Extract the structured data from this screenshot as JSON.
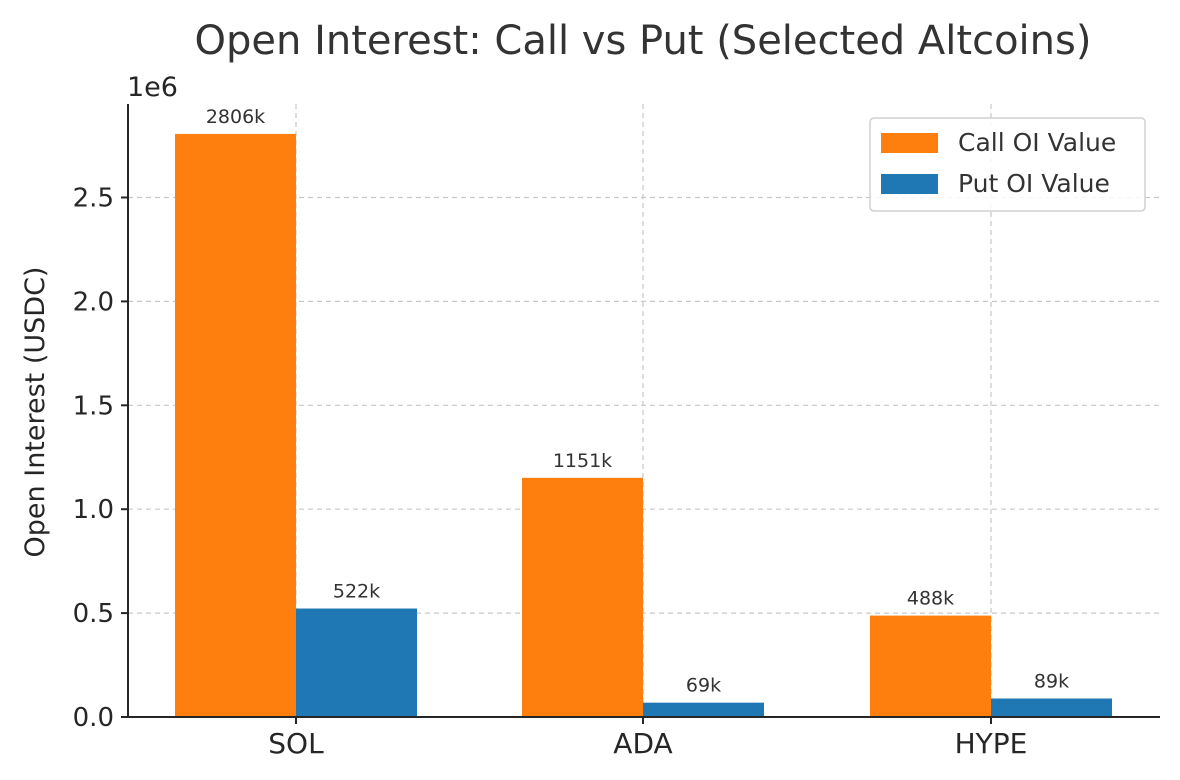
{
  "chart_data": {
    "type": "bar",
    "title": "Open Interest: Call vs Put (Selected Altcoins)",
    "ylabel": "Open Interest (USDC)",
    "xlabel": "",
    "y_offset_label": "1e6",
    "categories": [
      "SOL",
      "ADA",
      "HYPE"
    ],
    "ylim": [
      0,
      2950000
    ],
    "yticks": [
      0,
      500000,
      1000000,
      1500000,
      2000000,
      2500000
    ],
    "ytick_labels": [
      "0.0",
      "0.5",
      "1.0",
      "1.5",
      "2.0",
      "2.5"
    ],
    "grid": true,
    "legend_position": "top-right",
    "series": [
      {
        "name": "Call OI Value",
        "color": "#ff7f0e",
        "values": [
          2806000,
          1151000,
          488000
        ],
        "labels": [
          "2806k",
          "1151k",
          "488k"
        ]
      },
      {
        "name": "Put OI Value",
        "color": "#1f77b4",
        "values": [
          522000,
          69000,
          89000
        ],
        "labels": [
          "522k",
          "69k",
          "89k"
        ]
      }
    ]
  }
}
